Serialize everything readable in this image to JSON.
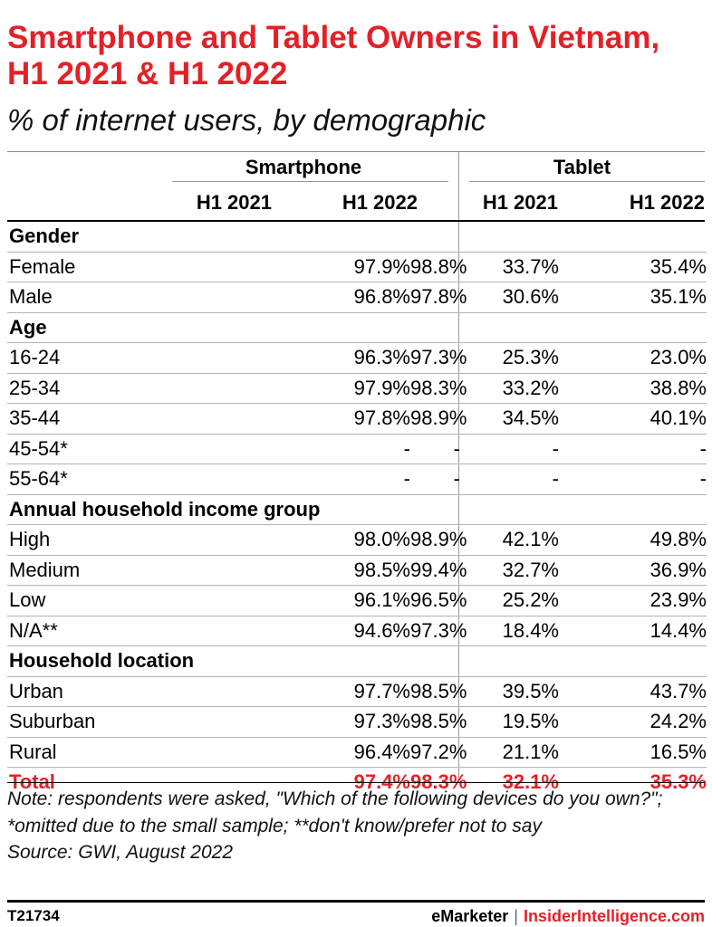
{
  "title": "Smartphone and Tablet Owners in Vietnam, H1 2021 & H1 2022",
  "subtitle": "% of internet users, by demographic",
  "chart_data": {
    "type": "table",
    "groups": [
      "Smartphone",
      "Tablet"
    ],
    "columns": [
      "H1 2021",
      "H1 2022",
      "H1 2021",
      "H1 2022"
    ],
    "sections": [
      {
        "name": "Gender",
        "rows": [
          {
            "label": "Female",
            "values": [
              "97.9%",
              "98.8%",
              "33.7%",
              "35.4%"
            ]
          },
          {
            "label": "Male",
            "values": [
              "96.8%",
              "97.8%",
              "30.6%",
              "35.1%"
            ]
          }
        ]
      },
      {
        "name": "Age",
        "rows": [
          {
            "label": "16-24",
            "values": [
              "96.3%",
              "97.3%",
              "25.3%",
              "23.0%"
            ]
          },
          {
            "label": "25-34",
            "values": [
              "97.9%",
              "98.3%",
              "33.2%",
              "38.8%"
            ]
          },
          {
            "label": "35-44",
            "values": [
              "97.8%",
              "98.9%",
              "34.5%",
              "40.1%"
            ]
          },
          {
            "label": "45-54*",
            "values": [
              "-",
              "-",
              "-",
              "-"
            ]
          },
          {
            "label": "55-64*",
            "values": [
              "-",
              "-",
              "-",
              "-"
            ]
          }
        ]
      },
      {
        "name": "Annual household income group",
        "rows": [
          {
            "label": "High",
            "values": [
              "98.0%",
              "98.9%",
              "42.1%",
              "49.8%"
            ]
          },
          {
            "label": "Medium",
            "values": [
              "98.5%",
              "99.4%",
              "32.7%",
              "36.9%"
            ]
          },
          {
            "label": "Low",
            "values": [
              "96.1%",
              "96.5%",
              "25.2%",
              "23.9%"
            ]
          },
          {
            "label": "N/A**",
            "values": [
              "94.6%",
              "97.3%",
              "18.4%",
              "14.4%"
            ]
          }
        ]
      },
      {
        "name": "Household location",
        "rows": [
          {
            "label": "Urban",
            "values": [
              "97.7%",
              "98.5%",
              "39.5%",
              "43.7%"
            ]
          },
          {
            "label": "Suburban",
            "values": [
              "97.3%",
              "98.5%",
              "19.5%",
              "24.2%"
            ]
          },
          {
            "label": "Rural",
            "values": [
              "96.4%",
              "97.2%",
              "21.1%",
              "16.5%"
            ]
          }
        ]
      }
    ],
    "total": {
      "label": "Total",
      "values": [
        "97.4%",
        "98.3%",
        "32.1%",
        "35.3%"
      ]
    }
  },
  "note": "Note: respondents were asked, \"Which of the following devices do you own?\"; *omitted due to the small sample; **don't know/prefer not to say",
  "source": "Source: GWI, August 2022",
  "footer": {
    "id": "T21734",
    "brand1": "eMarketer",
    "separator": "|",
    "brand2": "InsiderIntelligence.com"
  },
  "colors": {
    "accent": "#e32128"
  }
}
